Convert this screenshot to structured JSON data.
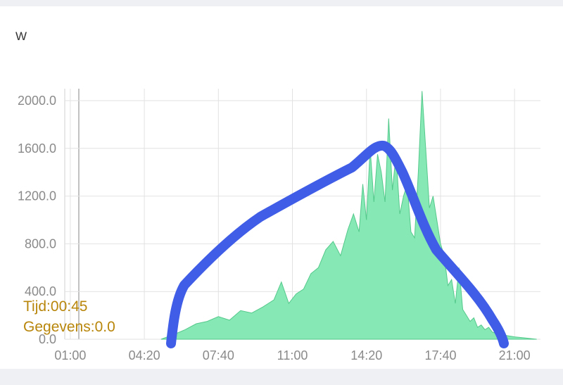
{
  "unit_label": "W",
  "tooltip": {
    "time": "Tijd:00:45",
    "value": "Gegevens:0.0"
  },
  "colors": {
    "area_fill": "#86e8b4",
    "area_stroke": "#55c98c",
    "annotation": "#3f5de6",
    "tooltip_text": "#b8860b",
    "grid": "#e2e2e2",
    "axis_text": "#8a8a8a"
  },
  "chart_data": {
    "type": "area",
    "title": "",
    "xlabel": "",
    "ylabel": "W",
    "x_ticks": [
      "01:00",
      "04:20",
      "07:40",
      "11:00",
      "14:20",
      "17:40",
      "21:00"
    ],
    "y_ticks": [
      "0.0",
      "400.0",
      "800.0",
      "1200.0",
      "1600.0",
      "2000.0"
    ],
    "xlim": [
      "00:45",
      "22:10"
    ],
    "ylim": [
      0,
      2100
    ],
    "grid": true,
    "legend": "none",
    "series": [
      {
        "type": "area",
        "x": [
          "05:05",
          "05:40",
          "06:10",
          "06:40",
          "07:10",
          "07:40",
          "08:10",
          "08:40",
          "09:10",
          "09:40",
          "10:10",
          "10:30",
          "10:50",
          "11:10",
          "11:30",
          "11:50",
          "12:10",
          "12:30",
          "12:50",
          "13:10",
          "13:30",
          "13:45",
          "14:00",
          "14:10",
          "14:20",
          "14:30",
          "14:40",
          "14:50",
          "15:00",
          "15:10",
          "15:20",
          "15:30",
          "15:40",
          "15:50",
          "16:00",
          "16:10",
          "16:20",
          "16:30",
          "16:40",
          "16:50",
          "17:00",
          "17:10",
          "17:20",
          "17:30",
          "17:40",
          "17:50",
          "18:00",
          "18:10",
          "18:20",
          "18:30",
          "18:40",
          "18:50",
          "19:00",
          "19:10",
          "19:20",
          "19:30",
          "19:40",
          "19:50",
          "20:00",
          "20:20",
          "20:40",
          "21:00",
          "21:30",
          "22:00"
        ],
        "y": [
          0,
          40,
          80,
          130,
          150,
          190,
          160,
          240,
          220,
          270,
          330,
          480,
          300,
          380,
          420,
          550,
          600,
          750,
          820,
          700,
          920,
          1050,
          900,
          1300,
          1000,
          1600,
          1150,
          1550,
          1400,
          1150,
          1850,
          1250,
          1550,
          1050,
          1200,
          1300,
          900,
          850,
          1400,
          2080,
          1600,
          1100,
          1200,
          1000,
          800,
          700,
          450,
          500,
          300,
          600,
          250,
          200,
          150,
          180,
          100,
          120,
          80,
          100,
          60,
          40,
          30,
          20,
          10,
          0
        ]
      }
    ]
  }
}
